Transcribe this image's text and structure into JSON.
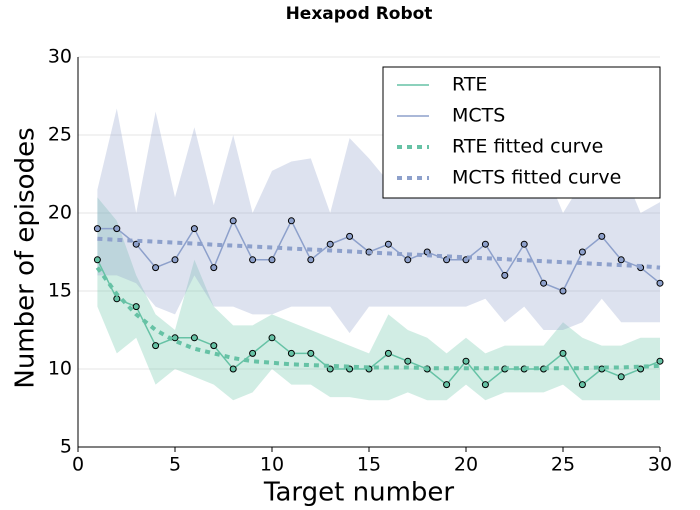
{
  "chart_data": {
    "type": "line",
    "title": "Hexapod Robot",
    "xlabel": "Target number",
    "ylabel": "Number of episodes",
    "x": [
      1,
      2,
      3,
      4,
      5,
      6,
      7,
      8,
      9,
      10,
      11,
      12,
      13,
      14,
      15,
      16,
      17,
      18,
      19,
      20,
      21,
      22,
      23,
      24,
      25,
      26,
      27,
      28,
      29,
      30
    ],
    "xlim": [
      0,
      30
    ],
    "xticks": [
      0,
      5,
      10,
      15,
      20,
      25,
      30
    ],
    "ylim": [
      5,
      30
    ],
    "yticks": [
      5,
      10,
      15,
      20,
      25,
      30
    ],
    "grid": true,
    "legend": "upper right",
    "series": [
      {
        "name": "RTE",
        "color": "#66c2a5",
        "markers": true,
        "values": [
          17,
          14.5,
          14,
          11.5,
          12,
          12,
          11.5,
          10,
          11,
          12,
          11,
          11,
          10,
          10,
          10,
          11,
          10.5,
          10,
          9,
          10.5,
          9,
          10,
          10,
          10,
          11,
          9,
          10,
          9.5,
          10,
          10.5
        ],
        "lower": [
          14,
          11,
          12,
          9,
          10,
          9.5,
          9,
          8,
          8.5,
          10,
          9,
          9,
          8.2,
          8.2,
          8,
          8,
          8.5,
          8,
          8,
          9,
          8,
          8.5,
          8.5,
          8.5,
          9,
          8,
          8,
          8,
          8,
          8
        ],
        "upper": [
          21,
          19.5,
          16,
          13.5,
          12.5,
          17,
          14,
          12.8,
          12.8,
          13.5,
          13,
          12.5,
          12,
          11.5,
          11,
          13.5,
          12.5,
          12,
          11,
          12,
          11,
          11.5,
          11.5,
          11.5,
          13,
          12,
          11.5,
          11.5,
          12,
          12
        ]
      },
      {
        "name": "MCTS",
        "color": "#8da0cb",
        "markers": true,
        "values": [
          19,
          19,
          18,
          16.5,
          17,
          19,
          16.5,
          19.5,
          17,
          17,
          19.5,
          17,
          18,
          18.5,
          17.5,
          18,
          17,
          17.5,
          17,
          17,
          18,
          16,
          18,
          15.5,
          15,
          17.5,
          18.5,
          17,
          16.5,
          15.5
        ],
        "lower": [
          16,
          16,
          15.5,
          14,
          13.5,
          16,
          14,
          14,
          13.5,
          13.5,
          14,
          14,
          14,
          12.3,
          14,
          14,
          14,
          14,
          14,
          14,
          14.5,
          13,
          14,
          12.5,
          12.5,
          13,
          14.5,
          13,
          13,
          13
        ],
        "upper": [
          21.5,
          26.7,
          20,
          26.5,
          21,
          25.5,
          20.5,
          25,
          20,
          22.7,
          23.3,
          23.5,
          20,
          24.8,
          23.5,
          22,
          22.5,
          24,
          23,
          23,
          24,
          22,
          24,
          23,
          20,
          22,
          24,
          23,
          20,
          20.7
        ]
      },
      {
        "name": "RTE fitted curve",
        "color": "#66c2a5",
        "dashed": true,
        "values": [
          16.5,
          14.8,
          13.5,
          12.5,
          11.8,
          11.3,
          11,
          10.7,
          10.5,
          10.4,
          10.3,
          10.25,
          10.2,
          10.15,
          10.1,
          10.1,
          10.1,
          10.05,
          10.05,
          10.05,
          10.05,
          10.05,
          10.05,
          10.05,
          10.05,
          10.05,
          10.1,
          10.1,
          10.15,
          10.2
        ]
      },
      {
        "name": "MCTS fitted curve",
        "color": "#8da0cb",
        "dashed": true,
        "values": [
          18.35,
          18.28,
          18.22,
          18.16,
          18.1,
          18.04,
          17.97,
          17.91,
          17.85,
          17.79,
          17.72,
          17.66,
          17.6,
          17.54,
          17.47,
          17.41,
          17.35,
          17.29,
          17.22,
          17.16,
          17.1,
          17.04,
          16.97,
          16.91,
          16.85,
          16.79,
          16.72,
          16.66,
          16.6,
          16.5
        ]
      }
    ]
  }
}
